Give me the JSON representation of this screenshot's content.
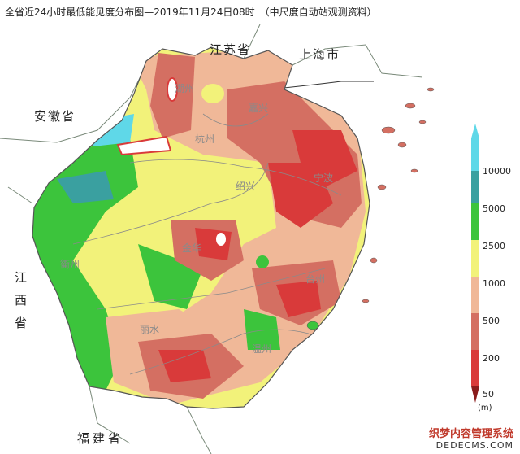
{
  "title": "全省近24小时最低能见度分布图—2019年11月24日08时　（中尺度自动站观测资料）",
  "regions": {
    "jiangsu": "江苏省",
    "shanghai": "上海市",
    "anhui": "安徽省",
    "jiangxi": [
      "江",
      "西",
      "省"
    ],
    "fujian": "福建省"
  },
  "cities": {
    "huzhou": "湖州",
    "jiaxing": "嘉兴",
    "hangzhou": "杭州",
    "shaoxing": "绍兴",
    "ningbo": "宁波",
    "jinhua": "金华",
    "quzhou": "衢州",
    "taizhou": "台州",
    "lishui": "丽水",
    "wenzhou": "温州"
  },
  "legend": {
    "levels": [
      "10000",
      "5000",
      "2500",
      "1000",
      "500",
      "200",
      "50"
    ],
    "unit": "(m)",
    "colors": [
      "#5fd8e8",
      "#3aa0a0",
      "#3cc43c",
      "#f2f27a",
      "#f0b898",
      "#d46f62",
      "#d93a3a"
    ]
  },
  "watermark": {
    "line1": "织梦内容管理系统",
    "line2": "DEDECMS.COM"
  }
}
